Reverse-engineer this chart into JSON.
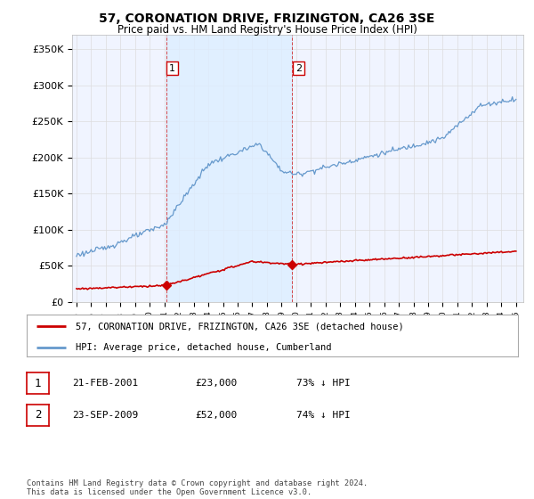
{
  "title": "57, CORONATION DRIVE, FRIZINGTON, CA26 3SE",
  "subtitle": "Price paid vs. HM Land Registry's House Price Index (HPI)",
  "ylim": [
    0,
    370000
  ],
  "yticks": [
    0,
    50000,
    100000,
    150000,
    200000,
    250000,
    300000,
    350000
  ],
  "ytick_labels": [
    "£0",
    "£50K",
    "£100K",
    "£150K",
    "£200K",
    "£250K",
    "£300K",
    "£350K"
  ],
  "purchases": [
    {
      "date_num": 2001.13,
      "price": 23000,
      "label": "1"
    },
    {
      "date_num": 2009.73,
      "price": 52000,
      "label": "2"
    }
  ],
  "purchase_line_color": "#cc0000",
  "hpi_line_color": "#6699cc",
  "vline_color": "#cc0000",
  "shade_color": "#ddeeff",
  "legend_house_label": "57, CORONATION DRIVE, FRIZINGTON, CA26 3SE (detached house)",
  "legend_hpi_label": "HPI: Average price, detached house, Cumberland",
  "annotation1_label": "1",
  "annotation1_date": "21-FEB-2001",
  "annotation1_price": "£23,000",
  "annotation1_hpi": "73% ↓ HPI",
  "annotation2_label": "2",
  "annotation2_date": "23-SEP-2009",
  "annotation2_price": "£52,000",
  "annotation2_hpi": "74% ↓ HPI",
  "footer": "Contains HM Land Registry data © Crown copyright and database right 2024.\nThis data is licensed under the Open Government Licence v3.0.",
  "bg_color": "#ffffff",
  "plot_bg_color": "#f0f4ff",
  "grid_color": "#dddddd"
}
